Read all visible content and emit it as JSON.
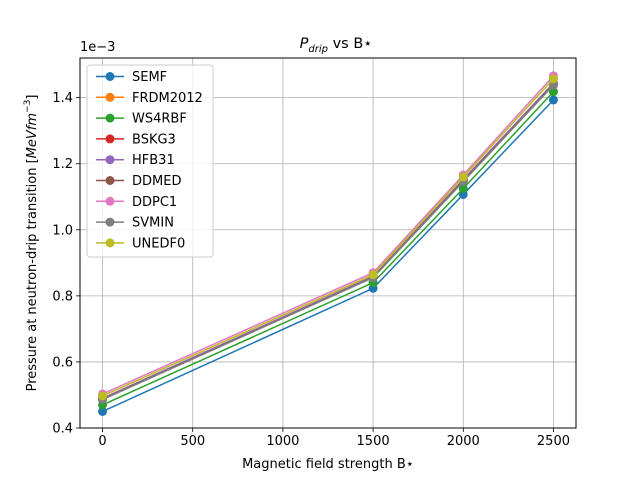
{
  "chart_data": {
    "type": "line",
    "title_main": "P",
    "title_sub": "drip",
    "title_vs": " vs B",
    "title_star": "⋆",
    "xlabel_prefix": "Magnetic field strength B",
    "xlabel_star": "⋆",
    "ylabel_main": "Pressure at neutron-drip transition [",
    "ylabel_unit": "MeVfm",
    "ylabel_exp": "−3",
    "ylabel_close": "]",
    "y_offset_label": "1e−3",
    "xlim": [
      -125,
      2625
    ],
    "ylim": [
      0.0004,
      0.00152
    ],
    "x_ticks": [
      0,
      500,
      1000,
      1500,
      2000,
      2500
    ],
    "x_tick_labels": [
      "0",
      "500",
      "1000",
      "1500",
      "2000",
      "2500"
    ],
    "y_ticks": [
      0.0004,
      0.0006,
      0.0008,
      0.001,
      0.0012,
      0.0014
    ],
    "y_tick_labels": [
      "0.4",
      "0.6",
      "0.8",
      "1.0",
      "1.2",
      "1.4"
    ],
    "grid": true,
    "legend_position": "upper-left",
    "x": [
      0,
      1500,
      2000,
      2500
    ],
    "series": [
      {
        "name": "SEMF",
        "color": "#1f77b4",
        "values": [
          0.00045,
          0.000823,
          0.001107,
          0.001393
        ]
      },
      {
        "name": "FRDM2012",
        "color": "#ff7f0e",
        "values": [
          0.00049,
          0.000858,
          0.00115,
          0.00144
        ]
      },
      {
        "name": "WS4RBF",
        "color": "#2ca02c",
        "values": [
          0.00047,
          0.00084,
          0.001125,
          0.001418
        ]
      },
      {
        "name": "BSKG3",
        "color": "#d62728",
        "values": [
          0.000488,
          0.000857,
          0.00115,
          0.001442
        ]
      },
      {
        "name": "HFB31",
        "color": "#9467bd",
        "values": [
          0.00049,
          0.000859,
          0.001152,
          0.001444
        ]
      },
      {
        "name": "DDMED",
        "color": "#8c564b",
        "values": [
          0.000487,
          0.000856,
          0.001148,
          0.00144
        ]
      },
      {
        "name": "DDPC1",
        "color": "#e377c2",
        "values": [
          0.000503,
          0.00087,
          0.001166,
          0.001466
        ]
      },
      {
        "name": "SVMIN",
        "color": "#7f7f7f",
        "values": [
          0.000486,
          0.000855,
          0.001146,
          0.001438
        ]
      },
      {
        "name": "UNEDF0",
        "color": "#bcbd22",
        "values": [
          0.000497,
          0.000864,
          0.00116,
          0.001457
        ]
      }
    ]
  }
}
